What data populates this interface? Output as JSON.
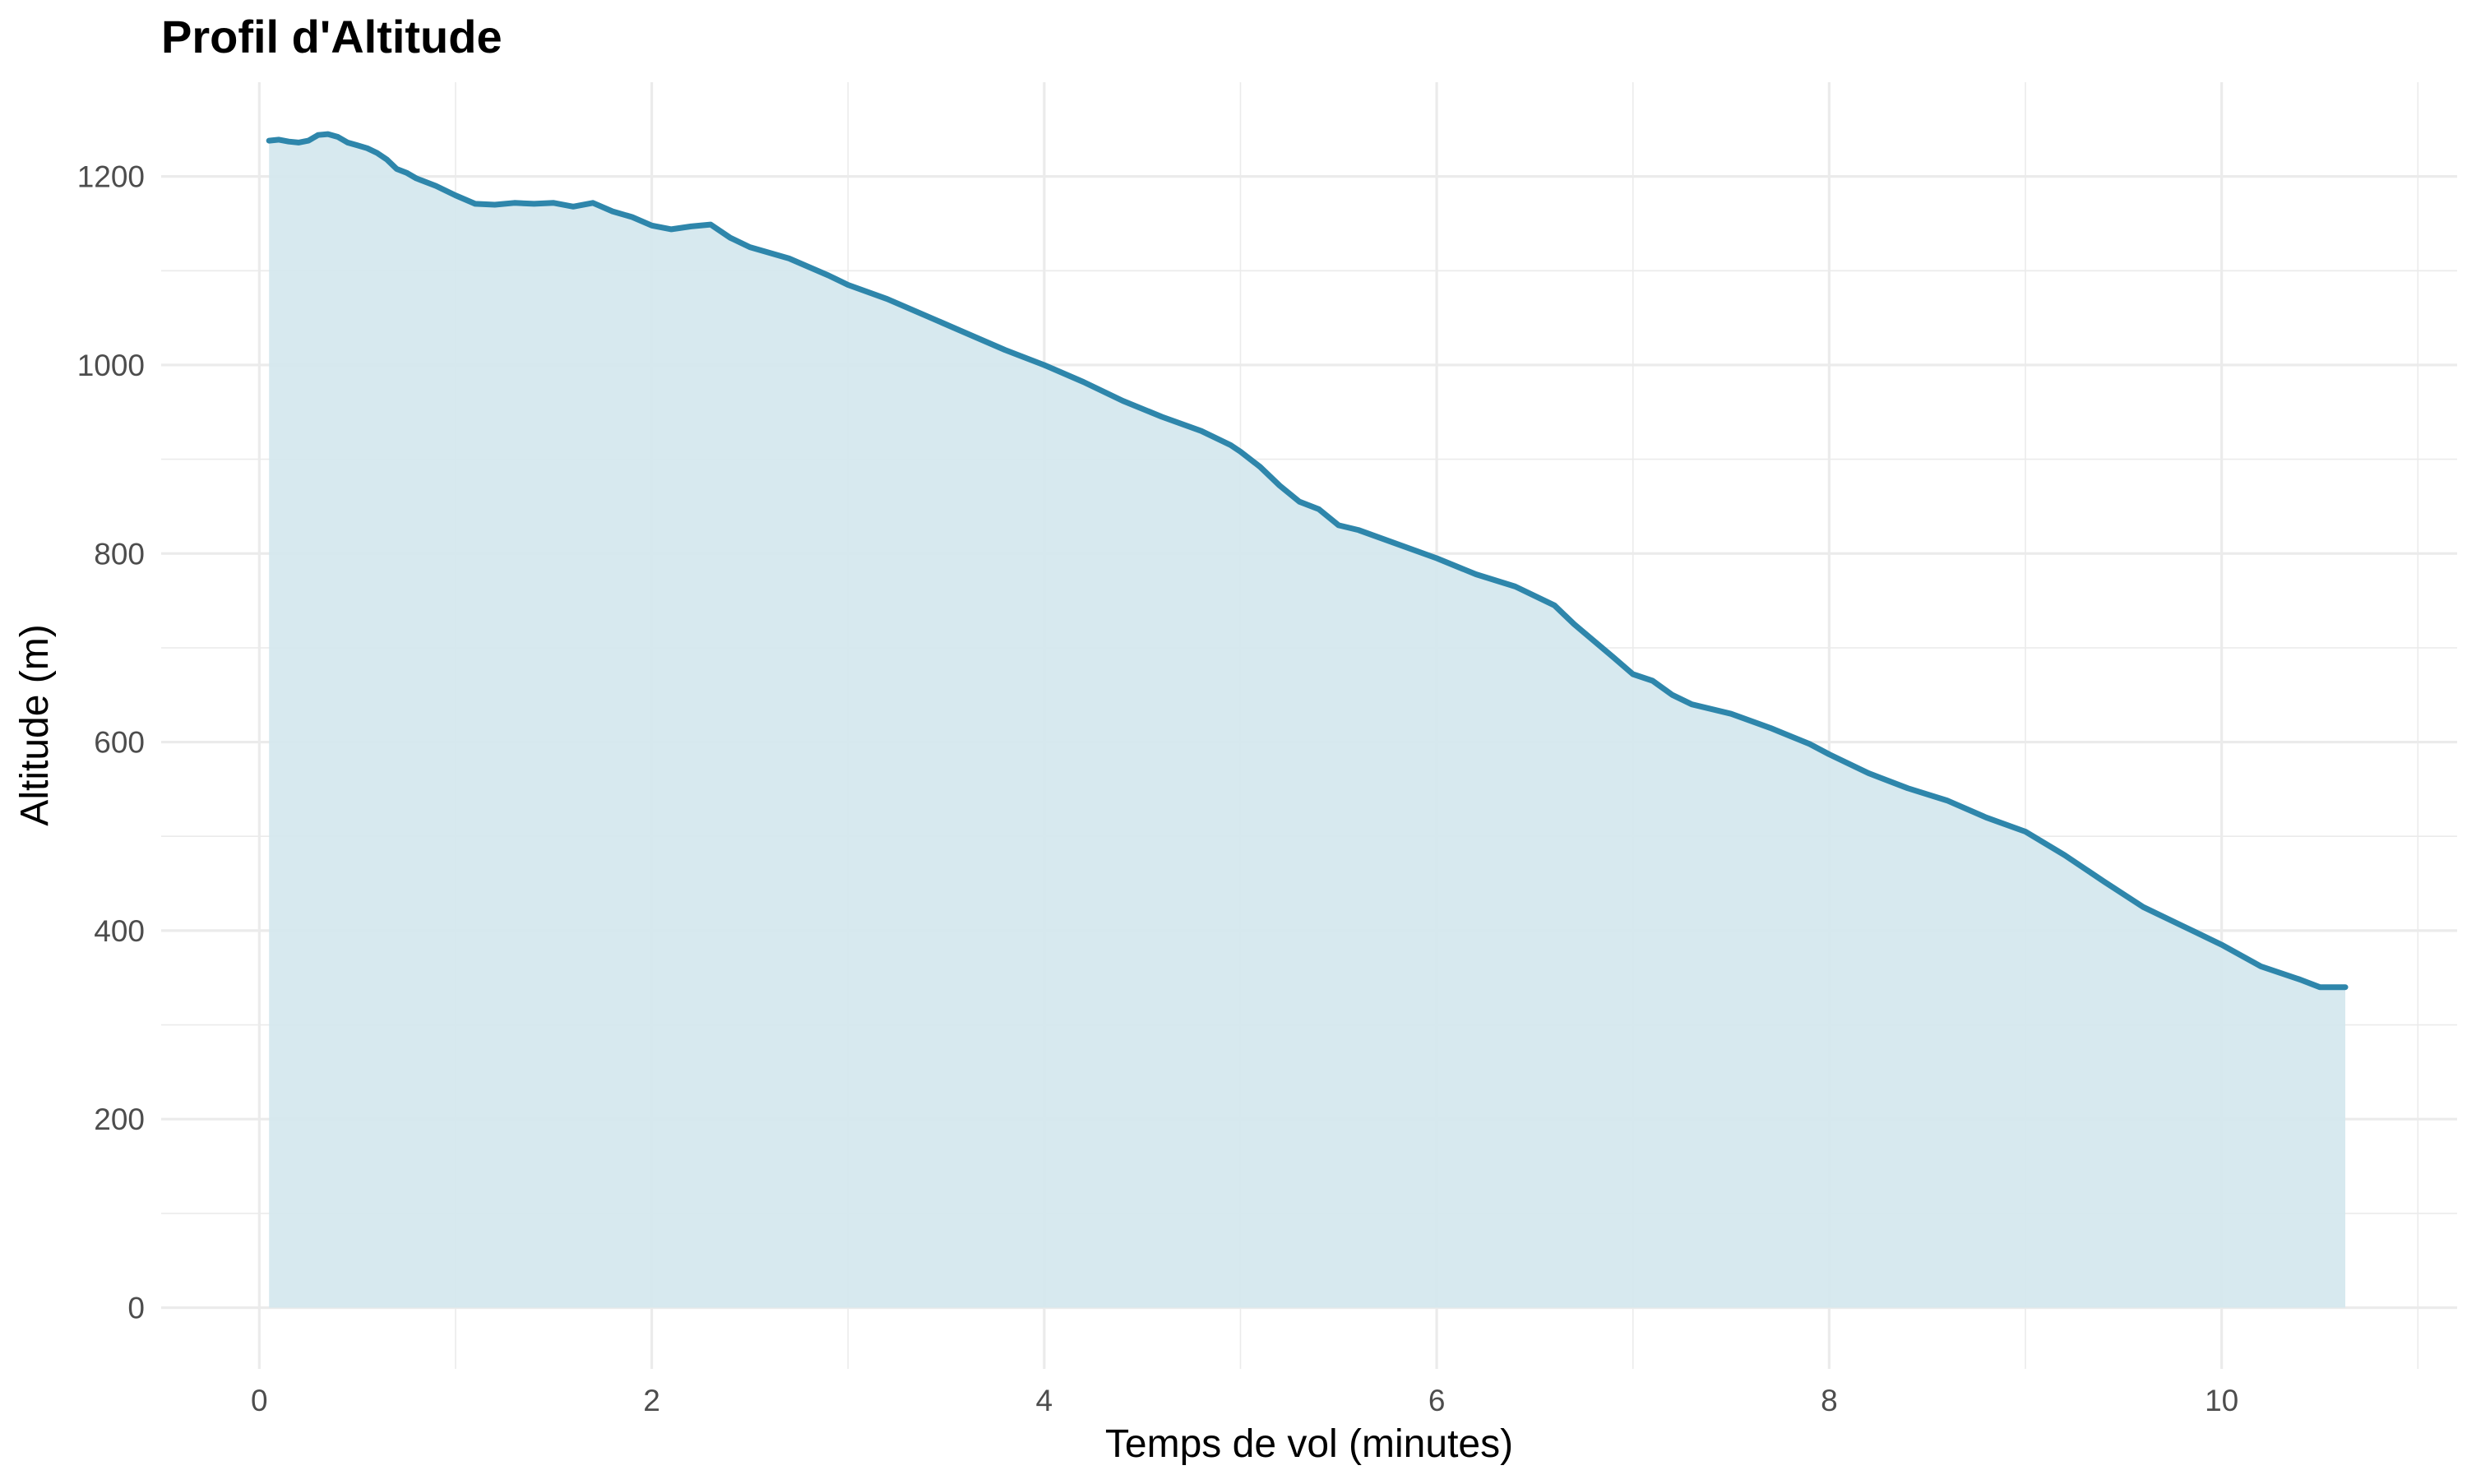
{
  "chart_data": {
    "type": "area",
    "title": "Profil d'Altitude",
    "xlabel": "Temps de vol (minutes)",
    "ylabel": "Altitude (m)",
    "xlim": [
      -0.5,
      11.2
    ],
    "ylim": [
      -65,
      1300
    ],
    "x_ticks": [
      0,
      2,
      4,
      6,
      8,
      10
    ],
    "y_ticks": [
      0,
      200,
      400,
      600,
      800,
      1000,
      1200
    ],
    "x_minor_ticks": [
      1,
      3,
      5,
      7,
      9,
      11
    ],
    "y_minor_ticks": [
      100,
      300,
      500,
      700,
      900,
      1100
    ],
    "grid": true,
    "legend": "none",
    "colors": {
      "line": "#2E86AB",
      "fill": "#D4E7EE"
    },
    "series": [
      {
        "x": [
          0.05,
          0.1,
          0.15,
          0.2,
          0.25,
          0.3,
          0.35,
          0.4,
          0.45,
          0.5,
          0.55,
          0.6,
          0.65,
          0.7,
          0.75,
          0.8,
          0.9,
          1.0,
          1.1,
          1.2,
          1.3,
          1.4,
          1.5,
          1.6,
          1.7,
          1.8,
          1.9,
          2.0,
          2.1,
          2.2,
          2.3,
          2.4,
          2.5,
          2.7,
          2.9,
          3.0,
          3.2,
          3.4,
          3.6,
          3.8,
          4.0,
          4.2,
          4.4,
          4.6,
          4.8,
          4.95,
          5.0,
          5.1,
          5.2,
          5.3,
          5.4,
          5.5,
          5.6,
          5.8,
          6.0,
          6.2,
          6.4,
          6.6,
          6.7,
          6.9,
          7.0,
          7.1,
          7.2,
          7.3,
          7.5,
          7.7,
          7.9,
          8.0,
          8.2,
          8.4,
          8.6,
          8.8,
          9.0,
          9.2,
          9.4,
          9.6,
          9.8,
          10.0,
          10.2,
          10.4,
          10.5,
          10.63
        ],
        "y": [
          1238,
          1239,
          1237,
          1236,
          1238,
          1244,
          1245,
          1242,
          1236,
          1233,
          1230,
          1225,
          1218,
          1208,
          1204,
          1198,
          1190,
          1180,
          1171,
          1170,
          1172,
          1171,
          1172,
          1168,
          1172,
          1163,
          1157,
          1148,
          1144,
          1147,
          1149,
          1135,
          1125,
          1113,
          1095,
          1085,
          1070,
          1052,
          1034,
          1016,
          1000,
          982,
          962,
          945,
          930,
          915,
          908,
          892,
          872,
          855,
          847,
          830,
          825,
          810,
          795,
          778,
          765,
          745,
          725,
          690,
          672,
          665,
          650,
          640,
          630,
          615,
          598,
          587,
          567,
          551,
          538,
          520,
          505,
          480,
          452,
          425,
          405,
          385,
          362,
          348,
          340,
          340
        ]
      }
    ]
  }
}
